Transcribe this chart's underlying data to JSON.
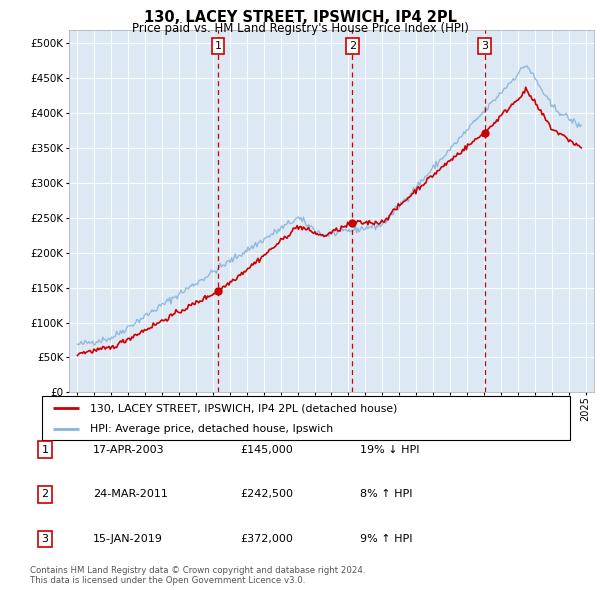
{
  "title1": "130, LACEY STREET, IPSWICH, IP4 2PL",
  "title2": "Price paid vs. HM Land Registry's House Price Index (HPI)",
  "plot_bg": "#dce9f5",
  "sale_dates_num": [
    2003.3,
    2011.23,
    2019.04
  ],
  "sale_prices": [
    145000,
    242500,
    372000
  ],
  "sale_labels": [
    "1",
    "2",
    "3"
  ],
  "legend_entries": [
    "130, LACEY STREET, IPSWICH, IP4 2PL (detached house)",
    "HPI: Average price, detached house, Ipswich"
  ],
  "table_rows": [
    [
      "1",
      "17-APR-2003",
      "£145,000",
      "19% ↓ HPI"
    ],
    [
      "2",
      "24-MAR-2011",
      "£242,500",
      "8% ↑ HPI"
    ],
    [
      "3",
      "15-JAN-2019",
      "£372,000",
      "9% ↑ HPI"
    ]
  ],
  "footer": "Contains HM Land Registry data © Crown copyright and database right 2024.\nThis data is licensed under the Open Government Licence v3.0.",
  "xlim": [
    1994.5,
    2025.5
  ],
  "ylim": [
    0,
    520000
  ],
  "red_line_color": "#cc0000",
  "blue_line_color": "#7bafd4",
  "hpi_line_color": "#89b4d9"
}
